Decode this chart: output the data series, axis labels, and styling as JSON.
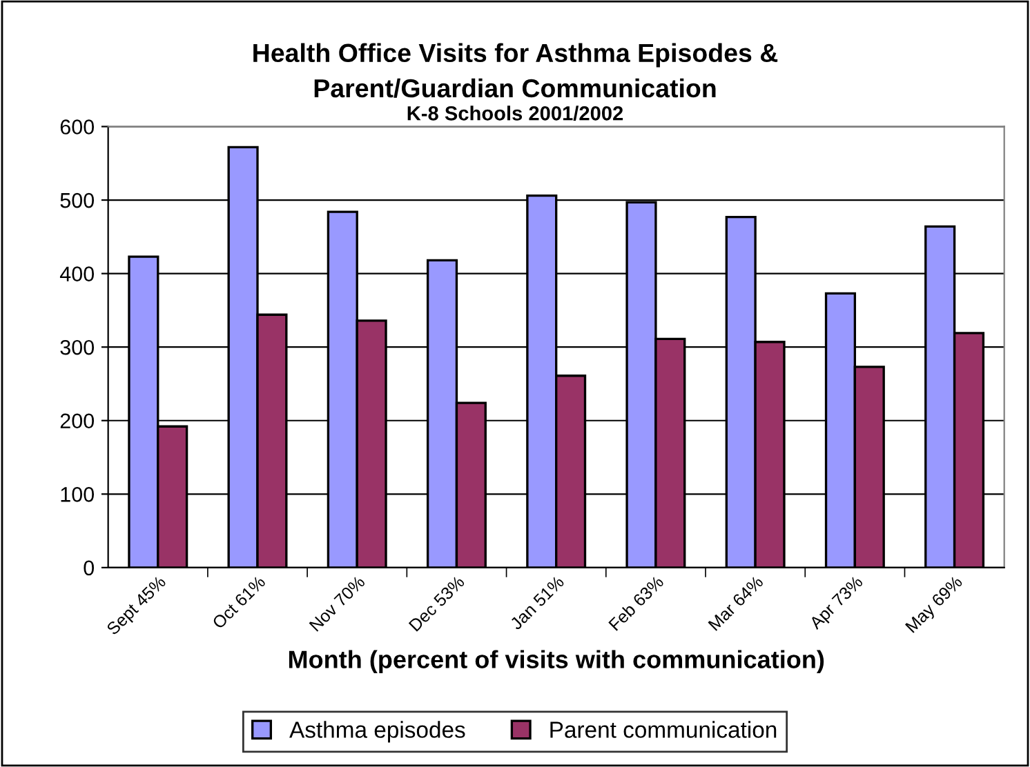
{
  "chart_data": {
    "type": "bar",
    "title": "Health Office Visits for Asthma Episodes &\nParent/Guardian Communication",
    "subtitle": "K-8 Schools 2001/2002",
    "xlabel": "Month (percent of visits with communication)",
    "categories": [
      "Sept 45%",
      "Oct 61%",
      "Nov 70%",
      "Dec 53%",
      "Jan 51%",
      "Feb 63%",
      "Mar 64%",
      "Apr 73%",
      "May 69%"
    ],
    "series": [
      {
        "name": "Asthma episodes",
        "color": "#9999ff",
        "values": [
          423,
          572,
          484,
          418,
          506,
          497,
          477,
          373,
          464
        ]
      },
      {
        "name": "Parent communication",
        "color": "#993366",
        "values": [
          192,
          344,
          336,
          224,
          261,
          311,
          307,
          273,
          319
        ]
      }
    ],
    "ylim": [
      0,
      600
    ],
    "yticks": [
      0,
      100,
      200,
      300,
      400,
      500,
      600
    ],
    "grid": "y",
    "legend": "bottom"
  }
}
